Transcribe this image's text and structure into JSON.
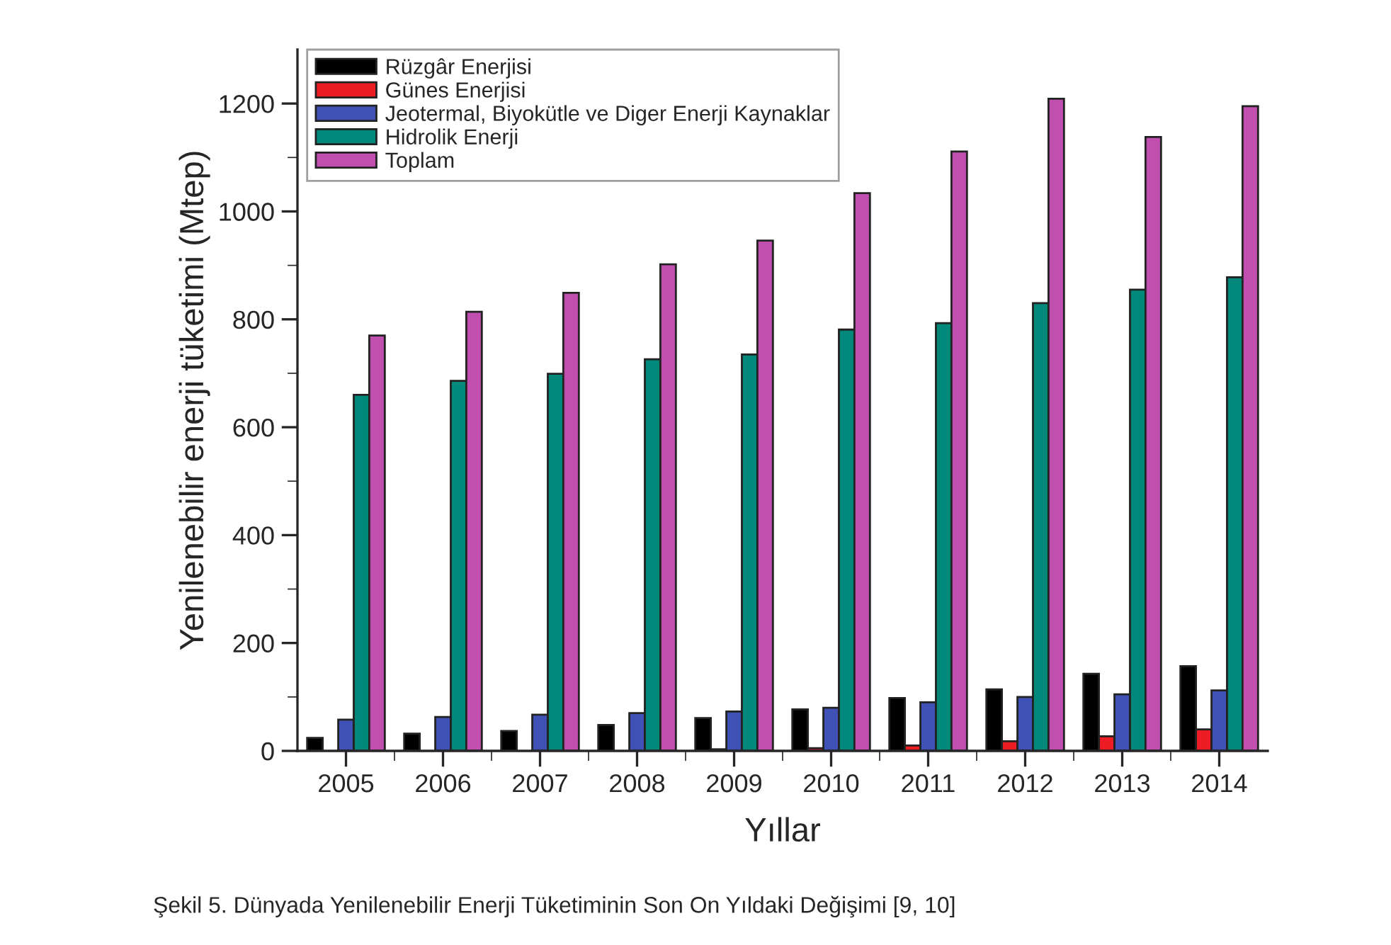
{
  "chart_data": {
    "type": "bar",
    "xlabel": "Yıllar",
    "ylabel": "Yenilenebilir enerji tüketimi (Mtep)",
    "categories": [
      "2005",
      "2006",
      "2007",
      "2008",
      "2009",
      "2010",
      "2011",
      "2012",
      "2013",
      "2014"
    ],
    "series": [
      {
        "name": "Rüzgâr Enerjisi",
        "color": "#000000",
        "values": [
          24,
          32,
          37,
          48,
          61,
          77,
          98,
          114,
          143,
          157
        ]
      },
      {
        "name": "Günes Enerjisi",
        "color": "#ee1c25",
        "values": [
          null,
          null,
          null,
          null,
          3,
          5,
          10,
          18,
          27,
          40
        ]
      },
      {
        "name": "Jeotermal, Biyokütle ve Diger Enerji Kaynaklar",
        "color": "#3f51b5",
        "values": [
          58,
          63,
          67,
          70,
          73,
          80,
          90,
          100,
          105,
          112
        ]
      },
      {
        "name": "Hidrolik Enerji",
        "color": "#00897b",
        "values": [
          660,
          686,
          699,
          726,
          735,
          781,
          793,
          830,
          855,
          878
        ]
      },
      {
        "name": "Toplam",
        "color": "#c04fb0",
        "values": [
          770,
          814,
          849,
          902,
          946,
          1034,
          1111,
          1209,
          1138,
          1195
        ]
      }
    ],
    "ylim": [
      0,
      1300
    ],
    "yticks": [
      0,
      {
        "value": 100,
        "label": null
      },
      200,
      {
        "value": 300,
        "label": null
      },
      400,
      {
        "value": 500,
        "label": null
      },
      600,
      {
        "value": 700,
        "label": null
      },
      800,
      {
        "value": 900,
        "label": null
      },
      1000,
      {
        "value": 1100,
        "label": null
      },
      1200
    ],
    "grid": false,
    "legend": "top left",
    "annotations": [
      "Şekil 5. Dünyada Yenilenebilir Enerji Tüketiminin Son On Yıldaki Değişimi [9, 10]"
    ]
  }
}
